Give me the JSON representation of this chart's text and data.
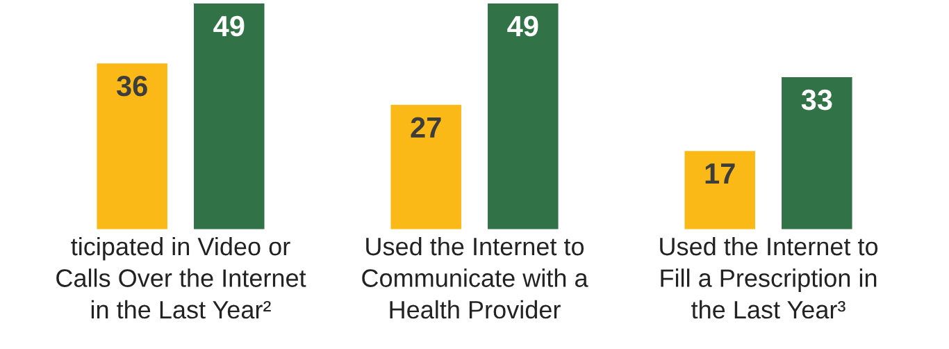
{
  "chart_data": {
    "type": "bar",
    "categories": [
      "ticipated in Video or\nCalls Over the Internet\nin the Last Year²",
      "Used the Internet to\nCommunicate with a\nHealth Provider",
      "Used the Internet to\nFill a Prescription in\nthe Last Year³"
    ],
    "series": [
      {
        "color": "#fbb917",
        "values": [
          36,
          27,
          17
        ]
      },
      {
        "color": "#317347",
        "values": [
          49,
          49,
          33
        ]
      }
    ],
    "ylim": [
      0,
      49
    ],
    "data_labels": true,
    "tick_labels": "x",
    "grid": false,
    "legend": false
  }
}
